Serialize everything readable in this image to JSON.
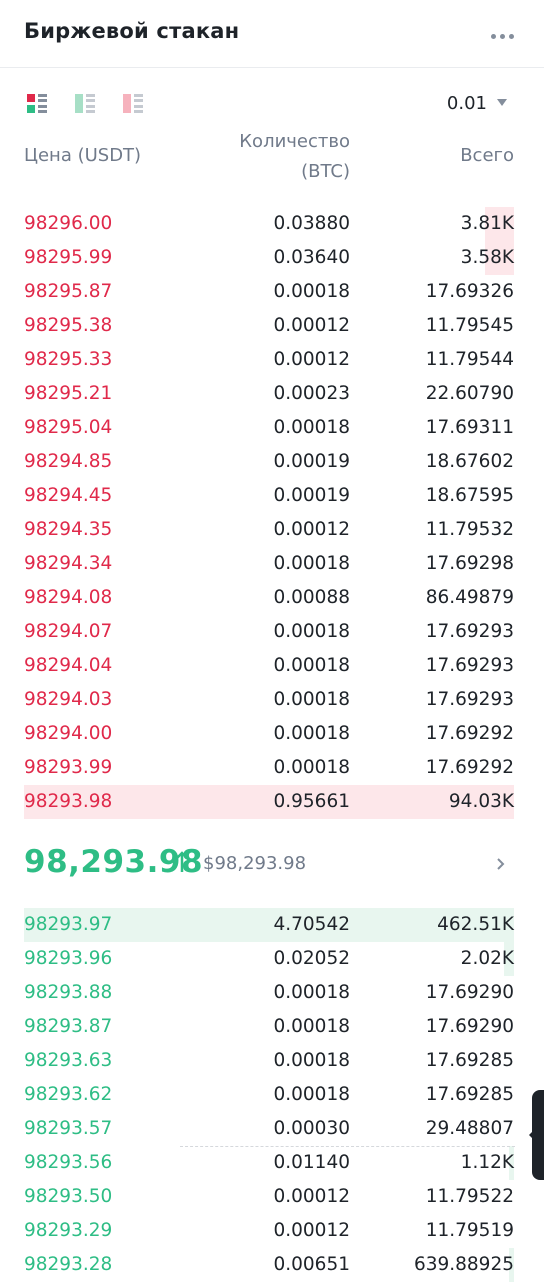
{
  "header": {
    "title": "Биржевой стакан",
    "more_icon": "more-dots-icon"
  },
  "toolbar": {
    "precision": "0.01",
    "modes": [
      "both-sides-icon",
      "bids-only-icon",
      "asks-only-icon"
    ]
  },
  "columns": {
    "price": "Цена (USDT)",
    "quantity_line1": "Количество",
    "quantity_line2": "(BTC)",
    "total": "Всего"
  },
  "asks": [
    {
      "price": "98296.00",
      "qty": "0.03880",
      "total": "3.81K",
      "depth": 0.06
    },
    {
      "price": "98295.99",
      "qty": "0.03640",
      "total": "3.58K",
      "depth": 0.06
    },
    {
      "price": "98295.87",
      "qty": "0.00018",
      "total": "17.69326",
      "depth": 0
    },
    {
      "price": "98295.38",
      "qty": "0.00012",
      "total": "11.79545",
      "depth": 0
    },
    {
      "price": "98295.33",
      "qty": "0.00012",
      "total": "11.79544",
      "depth": 0
    },
    {
      "price": "98295.21",
      "qty": "0.00023",
      "total": "22.60790",
      "depth": 0
    },
    {
      "price": "98295.04",
      "qty": "0.00018",
      "total": "17.69311",
      "depth": 0
    },
    {
      "price": "98294.85",
      "qty": "0.00019",
      "total": "18.67602",
      "depth": 0
    },
    {
      "price": "98294.45",
      "qty": "0.00019",
      "total": "18.67595",
      "depth": 0
    },
    {
      "price": "98294.35",
      "qty": "0.00012",
      "total": "11.79532",
      "depth": 0
    },
    {
      "price": "98294.34",
      "qty": "0.00018",
      "total": "17.69298",
      "depth": 0
    },
    {
      "price": "98294.08",
      "qty": "0.00088",
      "total": "86.49879",
      "depth": 0
    },
    {
      "price": "98294.07",
      "qty": "0.00018",
      "total": "17.69293",
      "depth": 0
    },
    {
      "price": "98294.04",
      "qty": "0.00018",
      "total": "17.69293",
      "depth": 0
    },
    {
      "price": "98294.03",
      "qty": "0.00018",
      "total": "17.69293",
      "depth": 0
    },
    {
      "price": "98294.00",
      "qty": "0.00018",
      "total": "17.69292",
      "depth": 0
    },
    {
      "price": "98293.99",
      "qty": "0.00018",
      "total": "17.69292",
      "depth": 0
    },
    {
      "price": "98293.98",
      "qty": "0.95661",
      "total": "94.03K",
      "depth": 1.0
    }
  ],
  "mid": {
    "last_price": "98,293.98",
    "usd_price": "$98,293.98",
    "direction_icon": "arrow-up-icon"
  },
  "bids": [
    {
      "price": "98293.97",
      "qty": "4.70542",
      "total": "462.51K",
      "depth": 1.0
    },
    {
      "price": "98293.96",
      "qty": "0.02052",
      "total": "2.02K",
      "depth": 0.02
    },
    {
      "price": "98293.88",
      "qty": "0.00018",
      "total": "17.69290",
      "depth": 0
    },
    {
      "price": "98293.87",
      "qty": "0.00018",
      "total": "17.69290",
      "depth": 0
    },
    {
      "price": "98293.63",
      "qty": "0.00018",
      "total": "17.69285",
      "depth": 0
    },
    {
      "price": "98293.62",
      "qty": "0.00018",
      "total": "17.69285",
      "depth": 0
    },
    {
      "price": "98293.57",
      "qty": "0.00030",
      "total": "29.48807",
      "depth": 0
    },
    {
      "price": "98293.56",
      "qty": "0.01140",
      "total": "1.12K",
      "depth": 0.01
    },
    {
      "price": "98293.50",
      "qty": "0.00012",
      "total": "11.79522",
      "depth": 0
    },
    {
      "price": "98293.29",
      "qty": "0.00012",
      "total": "11.79519",
      "depth": 0
    },
    {
      "price": "98293.28",
      "qty": "0.00651",
      "total": "639.88925",
      "depth": 0.01
    }
  ],
  "colors": {
    "ask": "#e0294a",
    "bid": "#2ebd85",
    "ask_bg": "#fde7ea",
    "bid_bg": "#e8f6ef"
  }
}
